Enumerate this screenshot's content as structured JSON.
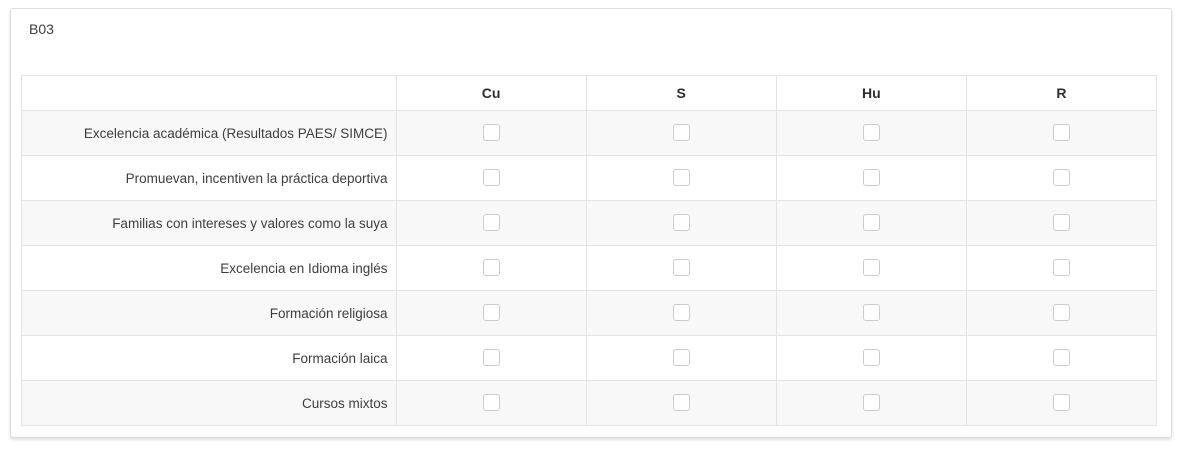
{
  "question": {
    "code": "B03"
  },
  "matrix": {
    "column_headers": [
      "Cu",
      "S",
      "Hu",
      "R"
    ],
    "rows": [
      {
        "label": "Excelencia académica (Resultados PAES/ SIMCE)",
        "checked": [
          false,
          false,
          false,
          false
        ]
      },
      {
        "label": "Promuevan, incentiven la práctica deportiva",
        "checked": [
          false,
          false,
          false,
          false
        ]
      },
      {
        "label": "Familias con intereses y valores como la suya",
        "checked": [
          false,
          false,
          false,
          false
        ]
      },
      {
        "label": "Excelencia en Idioma inglés",
        "checked": [
          false,
          false,
          false,
          false
        ]
      },
      {
        "label": "Formación religiosa",
        "checked": [
          false,
          false,
          false,
          false
        ]
      },
      {
        "label": "Formación laica",
        "checked": [
          false,
          false,
          false,
          false
        ]
      },
      {
        "label": "Cursos mixtos",
        "checked": [
          false,
          false,
          false,
          false
        ]
      }
    ]
  },
  "colors": {
    "card_border": "#dddddd",
    "table_border": "#e4e4e4",
    "row_stripe": "#f8f8f8",
    "checkbox_border": "#cccccc",
    "label_text": "#3e3e3e",
    "header_text": "#2e2e2e"
  }
}
